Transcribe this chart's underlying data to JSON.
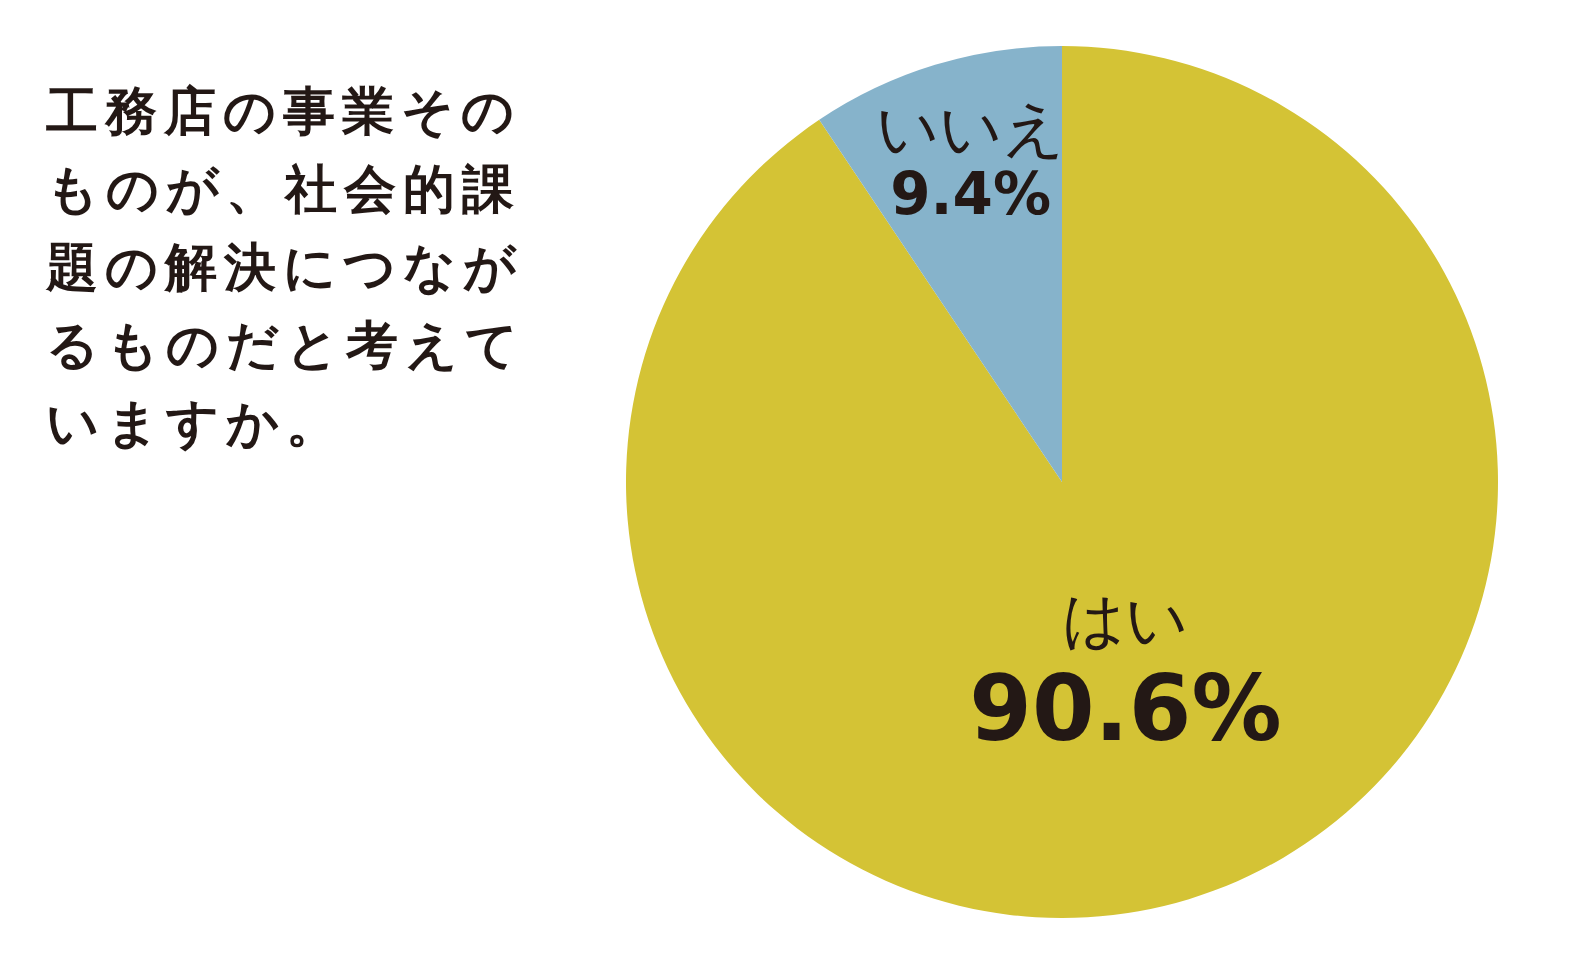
{
  "chart_data": {
    "type": "pie",
    "title": "工務店の事業そのものが、社会的課題の解決につながるものだと考えていますか。",
    "categories": [
      "はい",
      "いいえ"
    ],
    "values": [
      90.6,
      9.4
    ],
    "colors": [
      "#d4c335",
      "#86b3cb"
    ],
    "value_labels": [
      "90.6%",
      "9.4%"
    ]
  }
}
